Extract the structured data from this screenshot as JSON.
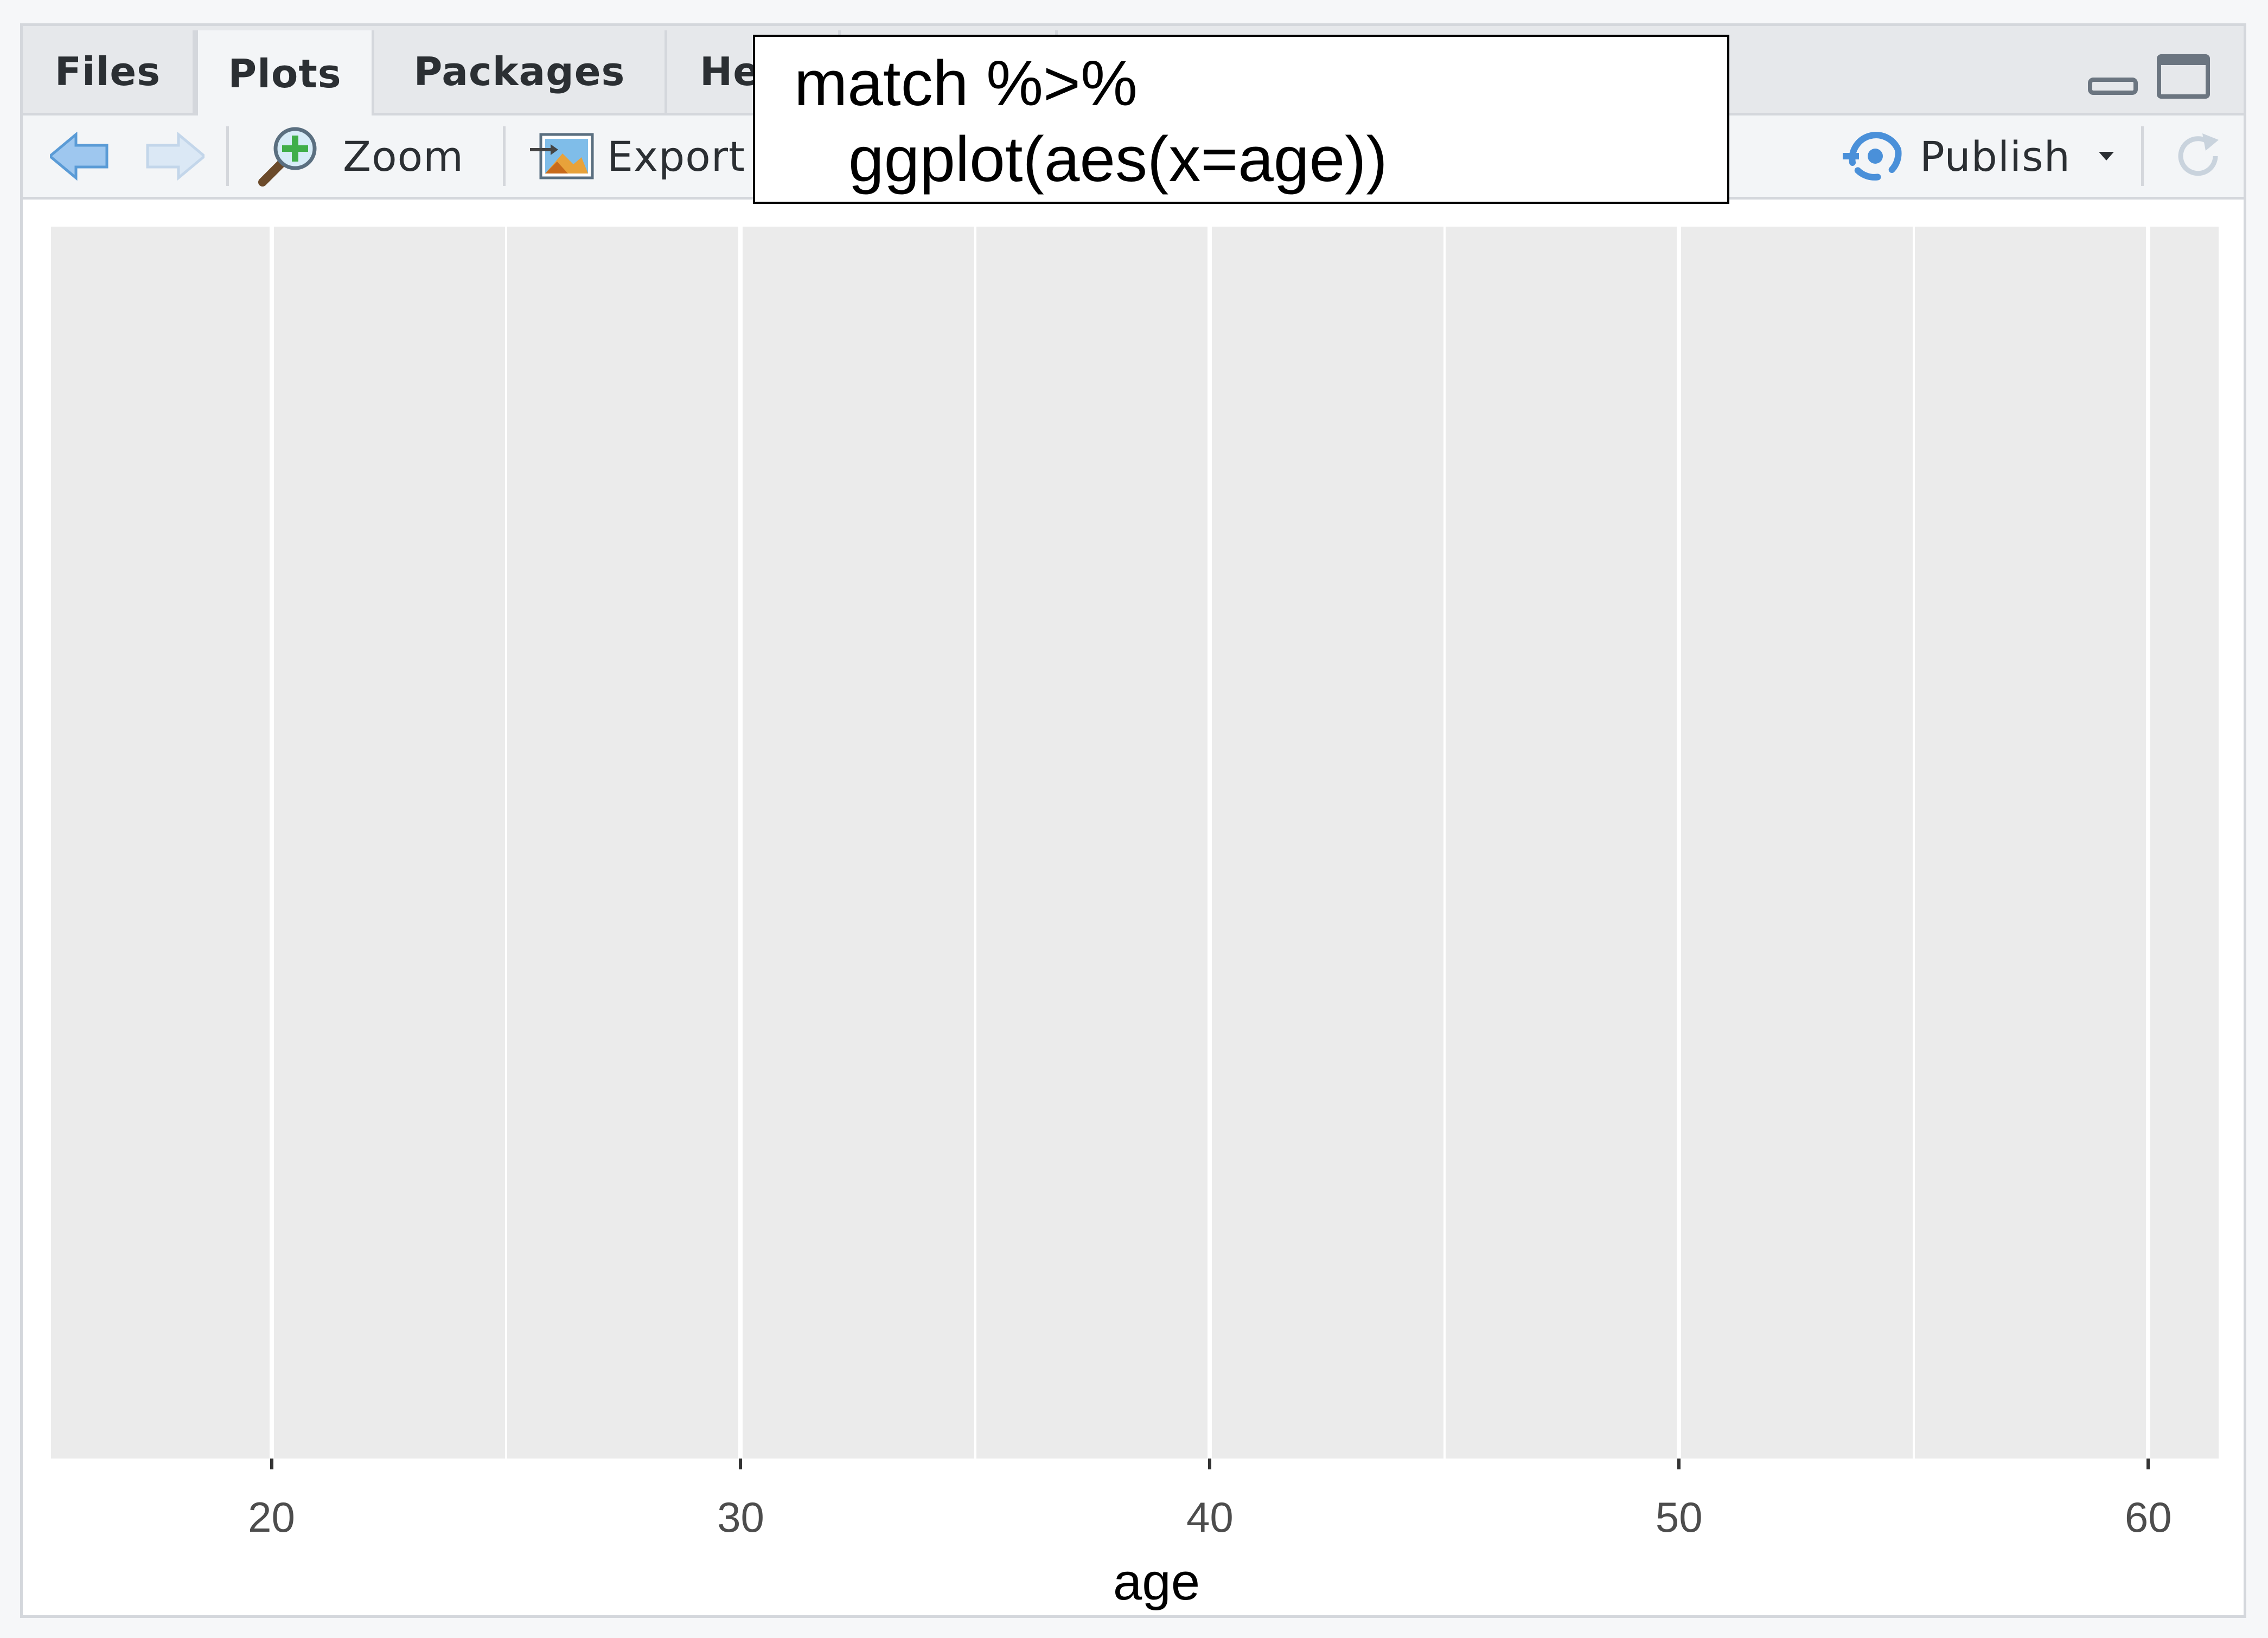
{
  "tabs": [
    {
      "label": "Files"
    },
    {
      "label": "Plots"
    },
    {
      "label": "Packages"
    },
    {
      "label": "Help"
    }
  ],
  "active_tab": "Plots",
  "toolbar": {
    "zoom_label": "Zoom",
    "export_label": "Export",
    "publish_label": "Publish"
  },
  "icons": {
    "back": "back-arrow-icon",
    "forward": "forward-arrow-icon",
    "zoom": "magnifier-plus-icon",
    "export": "export-image-icon",
    "publish": "publish-icon",
    "refresh": "refresh-icon",
    "minimize": "minimize-icon",
    "maximize": "maximize-icon"
  },
  "colors": {
    "accent": "#4a90d9",
    "panel_bg": "#ebebeb",
    "grid": "#ffffff"
  },
  "callout": {
    "line1": "match %>%",
    "line2": "ggplot(aes(x=age))"
  },
  "chart_data": {
    "type": "bar",
    "title": "",
    "xlabel": "age",
    "ylabel": "",
    "xlim": [
      15.3,
      61.5
    ],
    "x_ticks": [
      20,
      30,
      40,
      50,
      60
    ],
    "x_tick_labels": [
      "20",
      "30",
      "40",
      "50",
      "60"
    ],
    "minor_gridlines": [
      25,
      35,
      45,
      55
    ],
    "series": [],
    "grid": true,
    "legend": "none"
  }
}
